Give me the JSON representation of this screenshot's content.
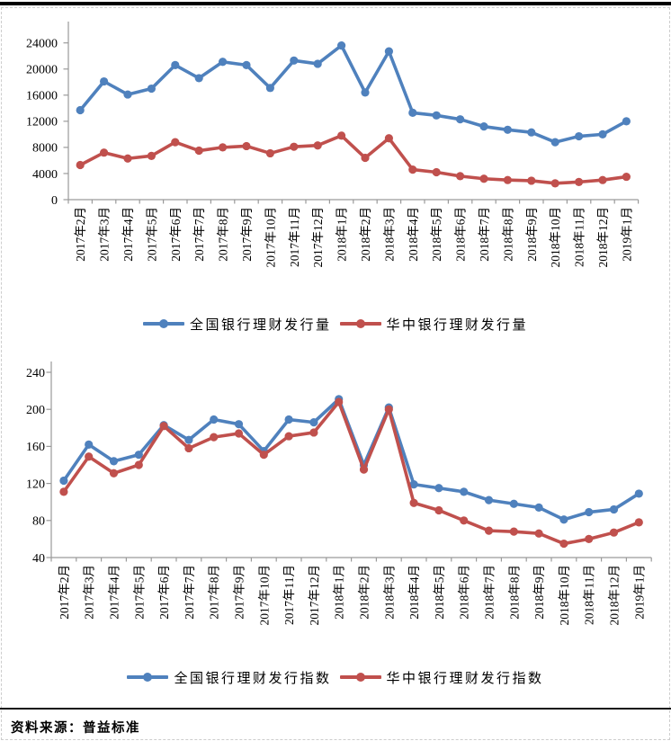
{
  "frame": {
    "source_note": "资料来源：普益标准"
  },
  "colors": {
    "national": "#4F81BD",
    "central_china": "#C0504D",
    "axis": "#9A9A9A"
  },
  "chart_data": [
    {
      "type": "line",
      "title": "",
      "categories": [
        "2017年2月",
        "2017年3月",
        "2017年4月",
        "2017年5月",
        "2017年6月",
        "2017年7月",
        "2017年8月",
        "2017年9月",
        "2017年10月",
        "2017年11月",
        "2017年12月",
        "2018年1月",
        "2018年2月",
        "2018年3月",
        "2018年4月",
        "2018年5月",
        "2018年6月",
        "2018年7月",
        "2018年8月",
        "2018年9月",
        "2018年10月",
        "2018年11月",
        "2018年12月",
        "2019年1月"
      ],
      "series": [
        {
          "name": "全国银行理财发行量",
          "color": "#4F81BD",
          "values": [
            13700,
            18100,
            16100,
            17000,
            20600,
            18600,
            21100,
            20600,
            17100,
            21300,
            20800,
            23600,
            16400,
            22700,
            13300,
            12900,
            12300,
            11200,
            10700,
            10300,
            8800,
            9700,
            10000,
            12000
          ]
        },
        {
          "name": "华中银行理财发行量",
          "color": "#C0504D",
          "values": [
            5300,
            7200,
            6300,
            6700,
            8800,
            7500,
            8000,
            8200,
            7100,
            8100,
            8300,
            9800,
            6400,
            9400,
            4600,
            4200,
            3600,
            3200,
            3000,
            2900,
            2500,
            2700,
            3000,
            3500
          ]
        }
      ],
      "ylim": [
        0,
        24000
      ],
      "ytick_step": 4000,
      "grid": false,
      "legend_position": "bottom",
      "x_tick_label_rotation": 90
    },
    {
      "type": "line",
      "title": "",
      "categories": [
        "2017年2月",
        "2017年3月",
        "2017年4月",
        "2017年5月",
        "2017年6月",
        "2017年7月",
        "2017年8月",
        "2017年9月",
        "2017年10月",
        "2017年11月",
        "2017年12月",
        "2018年1月",
        "2018年2月",
        "2018年3月",
        "2018年4月",
        "2018年5月",
        "2018年6月",
        "2018年7月",
        "2018年8月",
        "2018年9月",
        "2018年10月",
        "2018年11月",
        "2018年12月",
        "2019年1月"
      ],
      "series": [
        {
          "name": "全国银行理财发行指数",
          "color": "#4F81BD",
          "values": [
            123,
            162,
            144,
            151,
            183,
            167,
            189,
            184,
            155,
            189,
            186,
            211,
            140,
            202,
            119,
            115,
            111,
            102,
            98,
            94,
            81,
            89,
            92,
            109
          ]
        },
        {
          "name": "华中银行理财发行指数",
          "color": "#C0504D",
          "values": [
            111,
            149,
            131,
            140,
            182,
            158,
            170,
            174,
            151,
            171,
            175,
            208,
            135,
            200,
            99,
            91,
            80,
            69,
            68,
            66,
            55,
            60,
            67,
            78
          ]
        }
      ],
      "ylim": [
        40,
        240
      ],
      "ytick_step": 40,
      "grid": false,
      "legend_position": "bottom",
      "x_tick_label_rotation": 90
    }
  ]
}
